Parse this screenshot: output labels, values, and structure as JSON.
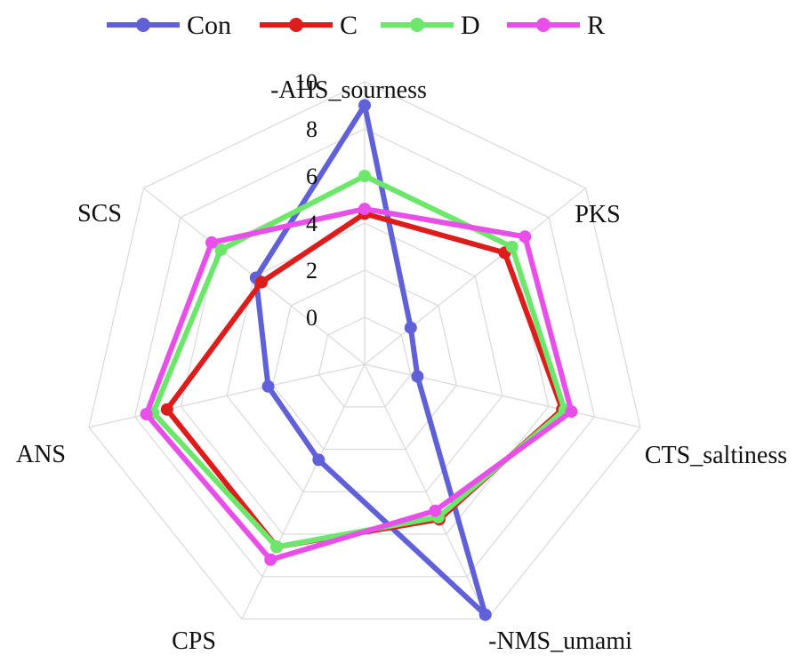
{
  "chart_data": {
    "type": "radar",
    "axes": [
      "-AHS_sourness",
      "PKS",
      "CTS_saltiness",
      "-NMS_umami",
      "CPS",
      "ANS",
      "SCS"
    ],
    "r_ticks": [
      "0",
      "2",
      "4",
      "6",
      "8",
      "10"
    ],
    "r_range": [
      -2,
      10
    ],
    "grid": true,
    "legend_position": "top",
    "series": [
      {
        "name": "Con",
        "color": "#6060d8",
        "values": [
          9.0,
          0.5,
          0.3,
          9.8,
          2.5,
          2.2,
          3.9
        ]
      },
      {
        "name": "C",
        "color": "#dd1c1c",
        "values": [
          4.4,
          5.6,
          6.6,
          5.3,
          6.6,
          6.6,
          3.6
        ]
      },
      {
        "name": "D",
        "color": "#6ce76c",
        "values": [
          6.0,
          6.0,
          6.7,
          5.2,
          6.6,
          7.2,
          5.8
        ]
      },
      {
        "name": "R",
        "color": "#e84fe8",
        "values": [
          4.6,
          6.7,
          7.0,
          4.9,
          7.2,
          7.5,
          6.3
        ]
      }
    ]
  }
}
